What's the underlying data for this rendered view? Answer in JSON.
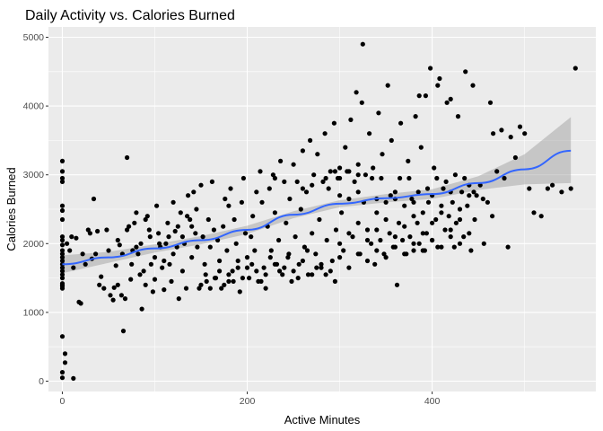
{
  "chart_data": {
    "type": "scatter",
    "title": "Daily Activity vs. Calories Burned",
    "xlabel": "Active Minutes",
    "ylabel": "Calories Burned",
    "xlim": [
      -15,
      577
    ],
    "ylim": [
      -150,
      5150
    ],
    "x_ticks": [
      0,
      200,
      400
    ],
    "y_ticks": [
      0,
      1000,
      2000,
      3000,
      4000,
      5000
    ],
    "grid": true,
    "legend": "none",
    "colors": {
      "panel_background": "#ebebeb",
      "grid": "#ffffff",
      "points": "#000000",
      "smooth_line": "#3366ff",
      "confidence_band": "#999999"
    },
    "points": [
      [
        0,
        3200
      ],
      [
        0,
        3050
      ],
      [
        0,
        2950
      ],
      [
        0,
        2900
      ],
      [
        0,
        2550
      ],
      [
        0,
        2480
      ],
      [
        0,
        2350
      ],
      [
        0,
        2100
      ],
      [
        0,
        2050
      ],
      [
        0,
        1980
      ],
      [
        0,
        1900
      ],
      [
        0,
        1850
      ],
      [
        0,
        1800
      ],
      [
        0,
        1750
      ],
      [
        0,
        1700
      ],
      [
        0,
        1650
      ],
      [
        0,
        1600
      ],
      [
        0,
        1550
      ],
      [
        0,
        1500
      ],
      [
        0,
        1420
      ],
      [
        0,
        1400
      ],
      [
        0,
        1380
      ],
      [
        0,
        1350
      ],
      [
        0,
        650
      ],
      [
        0,
        130
      ],
      [
        0,
        50
      ],
      [
        3,
        400
      ],
      [
        3,
        270
      ],
      [
        12,
        40
      ],
      [
        5,
        2000
      ],
      [
        8,
        1900
      ],
      [
        10,
        2100
      ],
      [
        12,
        1650
      ],
      [
        15,
        2080
      ],
      [
        18,
        1150
      ],
      [
        20,
        1130
      ],
      [
        22,
        1850
      ],
      [
        25,
        1700
      ],
      [
        28,
        2200
      ],
      [
        30,
        2150
      ],
      [
        32,
        1780
      ],
      [
        34,
        2650
      ],
      [
        36,
        1850
      ],
      [
        38,
        2180
      ],
      [
        40,
        1400
      ],
      [
        42,
        1520
      ],
      [
        45,
        1350
      ],
      [
        48,
        2200
      ],
      [
        50,
        1900
      ],
      [
        52,
        1250
      ],
      [
        55,
        1180
      ],
      [
        56,
        1360
      ],
      [
        58,
        1680
      ],
      [
        60,
        2050
      ],
      [
        62,
        1980
      ],
      [
        64,
        1250
      ],
      [
        66,
        730
      ],
      [
        68,
        1200
      ],
      [
        70,
        3250
      ],
      [
        72,
        2250
      ],
      [
        74,
        1480
      ],
      [
        76,
        1900
      ],
      [
        78,
        2300
      ],
      [
        80,
        1950
      ],
      [
        82,
        1850
      ],
      [
        84,
        1550
      ],
      [
        86,
        1050
      ],
      [
        88,
        1600
      ],
      [
        90,
        1400
      ],
      [
        92,
        2400
      ],
      [
        94,
        2200
      ],
      [
        96,
        1700
      ],
      [
        98,
        1300
      ],
      [
        100,
        1480
      ],
      [
        102,
        2550
      ],
      [
        104,
        2150
      ],
      [
        106,
        1950
      ],
      [
        108,
        1650
      ],
      [
        110,
        1330
      ],
      [
        112,
        2000
      ],
      [
        114,
        2300
      ],
      [
        116,
        1700
      ],
      [
        118,
        1450
      ],
      [
        120,
        2600
      ],
      [
        122,
        2180
      ],
      [
        124,
        1950
      ],
      [
        126,
        1200
      ],
      [
        128,
        2450
      ],
      [
        130,
        1600
      ],
      [
        132,
        2000
      ],
      [
        134,
        1350
      ],
      [
        136,
        2700
      ],
      [
        138,
        2350
      ],
      [
        140,
        1800
      ],
      [
        142,
        2750
      ],
      [
        144,
        2150
      ],
      [
        146,
        1950
      ],
      [
        148,
        1350
      ],
      [
        150,
        2850
      ],
      [
        152,
        2100
      ],
      [
        154,
        1700
      ],
      [
        156,
        1450
      ],
      [
        158,
        2350
      ],
      [
        160,
        1950
      ],
      [
        162,
        2900
      ],
      [
        164,
        2200
      ],
      [
        166,
        1500
      ],
      [
        168,
        2050
      ],
      [
        170,
        1750
      ],
      [
        172,
        1350
      ],
      [
        174,
        2250
      ],
      [
        176,
        2650
      ],
      [
        178,
        1900
      ],
      [
        180,
        1450
      ],
      [
        182,
        2800
      ],
      [
        184,
        1600
      ],
      [
        186,
        2350
      ],
      [
        188,
        2000
      ],
      [
        190,
        1750
      ],
      [
        192,
        1300
      ],
      [
        194,
        2600
      ],
      [
        196,
        2950
      ],
      [
        198,
        2150
      ],
      [
        200,
        1800
      ],
      [
        202,
        1500
      ],
      [
        204,
        2100
      ],
      [
        206,
        2400
      ],
      [
        208,
        1900
      ],
      [
        210,
        2750
      ],
      [
        212,
        1450
      ],
      [
        214,
        3050
      ],
      [
        216,
        2600
      ],
      [
        218,
        1650
      ],
      [
        220,
        1350
      ],
      [
        222,
        2250
      ],
      [
        224,
        2800
      ],
      [
        226,
        1900
      ],
      [
        228,
        3000
      ],
      [
        230,
        2450
      ],
      [
        232,
        1700
      ],
      [
        234,
        2050
      ],
      [
        236,
        3200
      ],
      [
        238,
        1550
      ],
      [
        240,
        2900
      ],
      [
        242,
        2300
      ],
      [
        244,
        1800
      ],
      [
        246,
        2650
      ],
      [
        248,
        1450
      ],
      [
        250,
        3150
      ],
      [
        252,
        2100
      ],
      [
        254,
        2900
      ],
      [
        256,
        1700
      ],
      [
        258,
        2500
      ],
      [
        260,
        3350
      ],
      [
        262,
        1950
      ],
      [
        264,
        2750
      ],
      [
        266,
        1550
      ],
      [
        268,
        3500
      ],
      [
        270,
        2150
      ],
      [
        272,
        3000
      ],
      [
        274,
        1850
      ],
      [
        276,
        3300
      ],
      [
        278,
        2350
      ],
      [
        280,
        1650
      ],
      [
        282,
        2900
      ],
      [
        284,
        3600
      ],
      [
        286,
        2050
      ],
      [
        288,
        2800
      ],
      [
        290,
        3050
      ],
      [
        292,
        1750
      ],
      [
        294,
        3750
      ],
      [
        296,
        2200
      ],
      [
        298,
        2950
      ],
      [
        300,
        3100
      ],
      [
        302,
        2450
      ],
      [
        304,
        1900
      ],
      [
        306,
        3400
      ],
      [
        308,
        3050
      ],
      [
        310,
        2650
      ],
      [
        312,
        3800
      ],
      [
        314,
        2100
      ],
      [
        316,
        2900
      ],
      [
        318,
        4200
      ],
      [
        320,
        3150
      ],
      [
        322,
        1850
      ],
      [
        324,
        4050
      ],
      [
        326,
        2600
      ],
      [
        328,
        3000
      ],
      [
        330,
        2200
      ],
      [
        332,
        3600
      ],
      [
        334,
        2000
      ],
      [
        336,
        3100
      ],
      [
        338,
        1700
      ],
      [
        340,
        2450
      ],
      [
        342,
        3900
      ],
      [
        344,
        2050
      ],
      [
        346,
        3300
      ],
      [
        348,
        1850
      ],
      [
        350,
        2600
      ],
      [
        352,
        4300
      ],
      [
        354,
        2150
      ],
      [
        356,
        3500
      ],
      [
        358,
        1950
      ],
      [
        360,
        2750
      ],
      [
        362,
        1400
      ],
      [
        364,
        2300
      ],
      [
        366,
        3750
      ],
      [
        368,
        2050
      ],
      [
        370,
        2550
      ],
      [
        372,
        1850
      ],
      [
        374,
        3200
      ],
      [
        376,
        2100
      ],
      [
        378,
        2650
      ],
      [
        380,
        1900
      ],
      [
        382,
        3850
      ],
      [
        384,
        2300
      ],
      [
        386,
        2000
      ],
      [
        388,
        3400
      ],
      [
        390,
        2450
      ],
      [
        392,
        1900
      ],
      [
        394,
        2150
      ],
      [
        396,
        2600
      ],
      [
        398,
        4550
      ],
      [
        400,
        2050
      ],
      [
        402,
        3100
      ],
      [
        404,
        2350
      ],
      [
        406,
        1950
      ],
      [
        408,
        4400
      ],
      [
        410,
        2550
      ],
      [
        412,
        2800
      ],
      [
        414,
        2200
      ],
      [
        416,
        4050
      ],
      [
        418,
        2400
      ],
      [
        420,
        4100
      ],
      [
        422,
        2600
      ],
      [
        424,
        1950
      ],
      [
        426,
        2300
      ],
      [
        428,
        3850
      ],
      [
        430,
        2500
      ],
      [
        432,
        2750
      ],
      [
        434,
        2100
      ],
      [
        436,
        4500
      ],
      [
        438,
        2550
      ],
      [
        440,
        2850
      ],
      [
        442,
        1900
      ],
      [
        444,
        4300
      ],
      [
        446,
        2350
      ],
      [
        448,
        2700
      ],
      [
        452,
        2850
      ],
      [
        456,
        2000
      ],
      [
        460,
        2600
      ],
      [
        465,
        2400
      ],
      [
        470,
        3050
      ],
      [
        478,
        2950
      ],
      [
        482,
        1950
      ],
      [
        485,
        3550
      ],
      [
        490,
        3250
      ],
      [
        495,
        3700
      ],
      [
        500,
        3600
      ],
      [
        505,
        2800
      ],
      [
        510,
        2450
      ],
      [
        518,
        2400
      ],
      [
        525,
        2800
      ],
      [
        555,
        4550
      ],
      [
        325,
        4900
      ],
      [
        386,
        4150
      ],
      [
        393,
        4150
      ],
      [
        406,
        4300
      ],
      [
        463,
        4050
      ],
      [
        466,
        3600
      ],
      [
        475,
        3650
      ],
      [
        530,
        2850
      ],
      [
        540,
        2750
      ],
      [
        550,
        2800
      ],
      [
        180,
        2550
      ],
      [
        230,
        2950
      ],
      [
        260,
        2800
      ],
      [
        270,
        2850
      ],
      [
        285,
        2950
      ],
      [
        295,
        3050
      ],
      [
        300,
        2950
      ],
      [
        310,
        3050
      ],
      [
        320,
        3000
      ],
      [
        335,
        2950
      ],
      [
        345,
        2950
      ],
      [
        355,
        2700
      ],
      [
        365,
        2950
      ],
      [
        375,
        2950
      ],
      [
        385,
        2750
      ],
      [
        395,
        2800
      ],
      [
        405,
        2950
      ],
      [
        415,
        2900
      ],
      [
        425,
        3000
      ],
      [
        435,
        2950
      ],
      [
        445,
        2750
      ],
      [
        455,
        2650
      ],
      [
        300,
        2700
      ],
      [
        320,
        2750
      ],
      [
        340,
        2650
      ],
      [
        360,
        2650
      ],
      [
        380,
        2600
      ],
      [
        400,
        2700
      ],
      [
        420,
        2750
      ],
      [
        440,
        2700
      ],
      [
        200,
        1650
      ],
      [
        210,
        1600
      ],
      [
        220,
        1550
      ],
      [
        230,
        1700
      ],
      [
        240,
        1650
      ],
      [
        250,
        1600
      ],
      [
        260,
        1750
      ],
      [
        270,
        1550
      ],
      [
        280,
        1700
      ],
      [
        290,
        1600
      ],
      [
        300,
        1800
      ],
      [
        310,
        1650
      ],
      [
        320,
        1850
      ],
      [
        330,
        1750
      ],
      [
        340,
        1900
      ],
      [
        350,
        1800
      ],
      [
        360,
        1950
      ],
      [
        370,
        1850
      ],
      [
        380,
        2000
      ],
      [
        390,
        1900
      ],
      [
        400,
        2050
      ],
      [
        410,
        1950
      ],
      [
        420,
        2100
      ],
      [
        430,
        2000
      ],
      [
        440,
        2150
      ],
      [
        300,
        2000
      ],
      [
        310,
        2150
      ],
      [
        320,
        2300
      ],
      [
        330,
        2050
      ],
      [
        340,
        2200
      ],
      [
        350,
        2350
      ],
      [
        360,
        2100
      ],
      [
        370,
        2250
      ],
      [
        380,
        2400
      ],
      [
        390,
        2150
      ],
      [
        400,
        2300
      ],
      [
        410,
        2450
      ],
      [
        420,
        2200
      ],
      [
        430,
        2350
      ],
      [
        150,
        1400
      ],
      [
        155,
        1550
      ],
      [
        160,
        1350
      ],
      [
        165,
        1500
      ],
      [
        170,
        1600
      ],
      [
        175,
        1400
      ],
      [
        180,
        1550
      ],
      [
        185,
        1450
      ],
      [
        190,
        1650
      ],
      [
        195,
        1500
      ],
      [
        205,
        1700
      ],
      [
        215,
        1450
      ],
      [
        225,
        1800
      ],
      [
        235,
        1600
      ],
      [
        245,
        1850
      ],
      [
        255,
        1500
      ],
      [
        265,
        1900
      ],
      [
        275,
        1650
      ],
      [
        285,
        1550
      ],
      [
        295,
        1450
      ],
      [
        100,
        1800
      ],
      [
        105,
        2000
      ],
      [
        110,
        1750
      ],
      [
        115,
        2100
      ],
      [
        120,
        1850
      ],
      [
        125,
        2250
      ],
      [
        130,
        2100
      ],
      [
        135,
        2400
      ],
      [
        140,
        2250
      ],
      [
        145,
        2500
      ],
      [
        60,
        1400
      ],
      [
        65,
        1850
      ],
      [
        70,
        2200
      ],
      [
        75,
        1700
      ],
      [
        80,
        2450
      ],
      [
        85,
        2000
      ],
      [
        90,
        2350
      ],
      [
        95,
        2100
      ]
    ],
    "smooth_line": [
      [
        0,
        1700
      ],
      [
        50,
        1800
      ],
      [
        100,
        1930
      ],
      [
        150,
        2050
      ],
      [
        200,
        2200
      ],
      [
        250,
        2420
      ],
      [
        300,
        2580
      ],
      [
        350,
        2660
      ],
      [
        400,
        2720
      ],
      [
        450,
        2880
      ],
      [
        500,
        3080
      ],
      [
        550,
        3350
      ]
    ],
    "confidence_band": {
      "upper": [
        [
          0,
          1830
        ],
        [
          50,
          1880
        ],
        [
          100,
          1990
        ],
        [
          150,
          2110
        ],
        [
          200,
          2260
        ],
        [
          250,
          2470
        ],
        [
          300,
          2630
        ],
        [
          350,
          2720
        ],
        [
          400,
          2790
        ],
        [
          450,
          2980
        ],
        [
          500,
          3300
        ],
        [
          550,
          3840
        ]
      ],
      "lower": [
        [
          0,
          1570
        ],
        [
          50,
          1720
        ],
        [
          100,
          1870
        ],
        [
          150,
          1990
        ],
        [
          200,
          2140
        ],
        [
          250,
          2370
        ],
        [
          300,
          2530
        ],
        [
          350,
          2600
        ],
        [
          400,
          2650
        ],
        [
          450,
          2780
        ],
        [
          500,
          2860
        ],
        [
          550,
          2880
        ]
      ]
    }
  }
}
